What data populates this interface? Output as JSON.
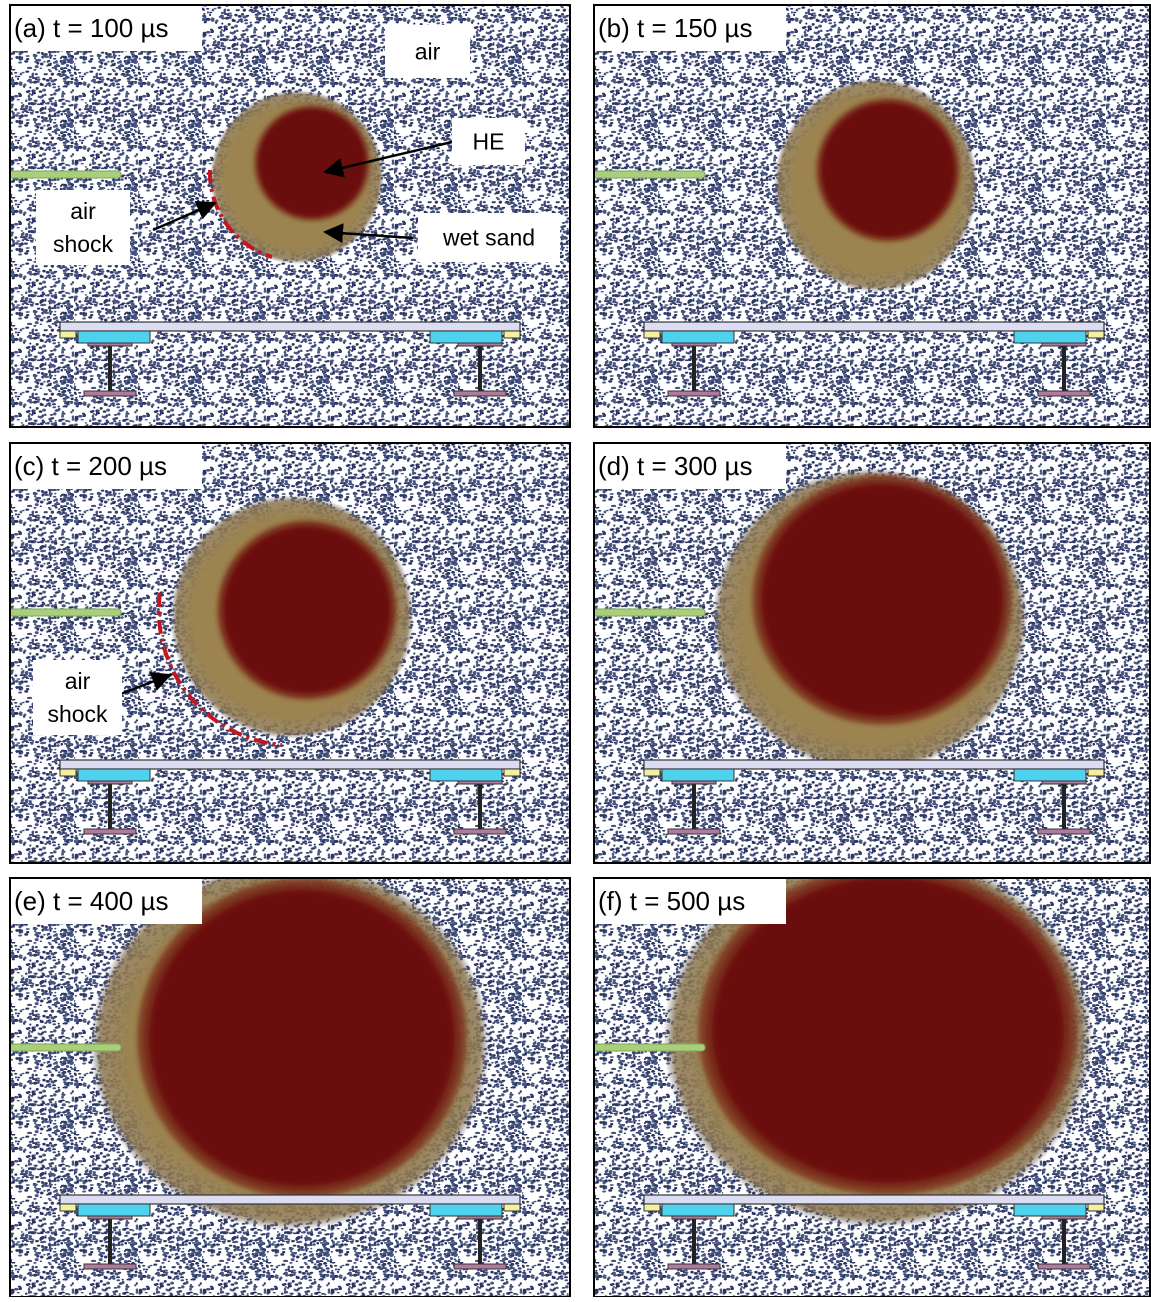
{
  "panels": [
    {
      "label": "(a) t = 100 µs",
      "annotations": [
        {
          "lines": [
            "air"
          ]
        },
        {
          "lines": [
            "HE"
          ]
        },
        {
          "lines": [
            "wet sand"
          ]
        },
        {
          "lines": [
            "air",
            "shock"
          ]
        }
      ]
    },
    {
      "label": "(b) t = 150 µs",
      "annotations": []
    },
    {
      "label": "(c) t = 200 µs",
      "annotations": [
        {
          "lines": [
            "air",
            "shock"
          ]
        }
      ]
    },
    {
      "label": "(d) t = 300 µs",
      "annotations": []
    },
    {
      "label": "(e) t = 400 µs",
      "annotations": []
    },
    {
      "label": "(f) t = 500 µs",
      "annotations": []
    }
  ]
}
